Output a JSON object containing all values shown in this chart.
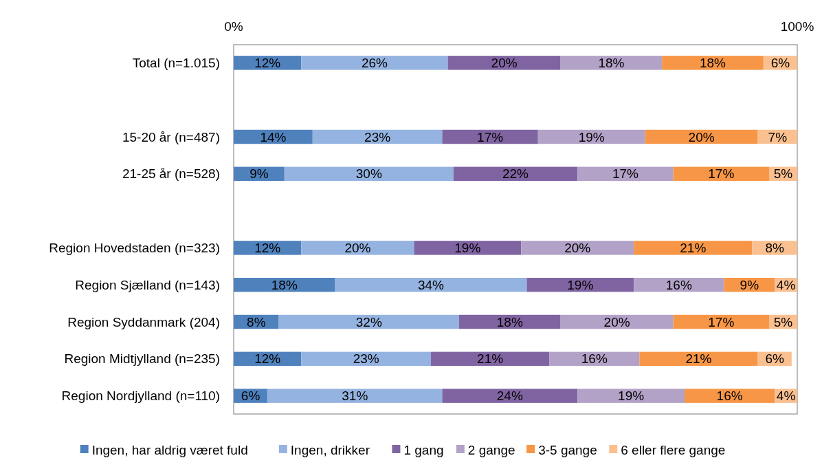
{
  "chart_data": {
    "type": "bar",
    "orientation": "horizontal",
    "stacked": true,
    "categories": [
      "Total (n=1.015)",
      null,
      "15-20 år (n=487)",
      "21-25 år (n=528)",
      null,
      "Region Hovedstaden (n=323)",
      "Region Sjælland (n=143)",
      "Region Syddanmark (204)",
      "Region Midtjylland (n=235)",
      "Region Nordjylland (n=110)"
    ],
    "series": [
      {
        "name": "Ingen, har aldrig været fuld",
        "color": "#4f81bd",
        "values": [
          12,
          null,
          14,
          9,
          null,
          12,
          18,
          8,
          12,
          6
        ],
        "value_labels": [
          "12%",
          null,
          "14%",
          "9%",
          null,
          "12%",
          "18%",
          "8%",
          "12%",
          "6%"
        ]
      },
      {
        "name": "Ingen, drikker",
        "color": "#95b3e0",
        "values": [
          26,
          null,
          23,
          30,
          null,
          20,
          34,
          32,
          23,
          31
        ],
        "value_labels": [
          "26%",
          null,
          "23%",
          "30%",
          null,
          "20%",
          "34%",
          "32%",
          "23%",
          "31%"
        ]
      },
      {
        "name": "1 gang",
        "color": "#8064a2",
        "values": [
          20,
          null,
          17,
          22,
          null,
          19,
          19,
          18,
          21,
          24
        ],
        "value_labels": [
          "20%",
          null,
          "17%",
          "22%",
          null,
          "19%",
          "19%",
          "18%",
          "21%",
          "24%"
        ]
      },
      {
        "name": "2 gange",
        "color": "#b3a2c7",
        "values": [
          18,
          null,
          19,
          17,
          null,
          20,
          16,
          20,
          16,
          19
        ],
        "value_labels": [
          "18%",
          null,
          "19%",
          "17%",
          null,
          "20%",
          "16%",
          "20%",
          "16%",
          "19%"
        ]
      },
      {
        "name": "3-5 gange",
        "color": "#f79646",
        "values": [
          18,
          null,
          20,
          17,
          null,
          21,
          9,
          17,
          21,
          16
        ],
        "value_labels": [
          "18%",
          null,
          "20%",
          "17%",
          null,
          "21%",
          "9%",
          "17%",
          "21%",
          "16%"
        ]
      },
      {
        "name": "6 eller flere gange",
        "color": "#fac090",
        "values": [
          6,
          null,
          7,
          5,
          null,
          8,
          4,
          5,
          6,
          4
        ],
        "value_labels": [
          "6%",
          null,
          "7%",
          "5%",
          null,
          "8%",
          "4%",
          "5%",
          "6%",
          "4%"
        ]
      }
    ],
    "xlim": [
      0,
      100
    ],
    "xticks": [
      {
        "value": 0,
        "label": "0%"
      },
      {
        "value": 100,
        "label": "100%"
      }
    ],
    "legend": "bottom"
  }
}
